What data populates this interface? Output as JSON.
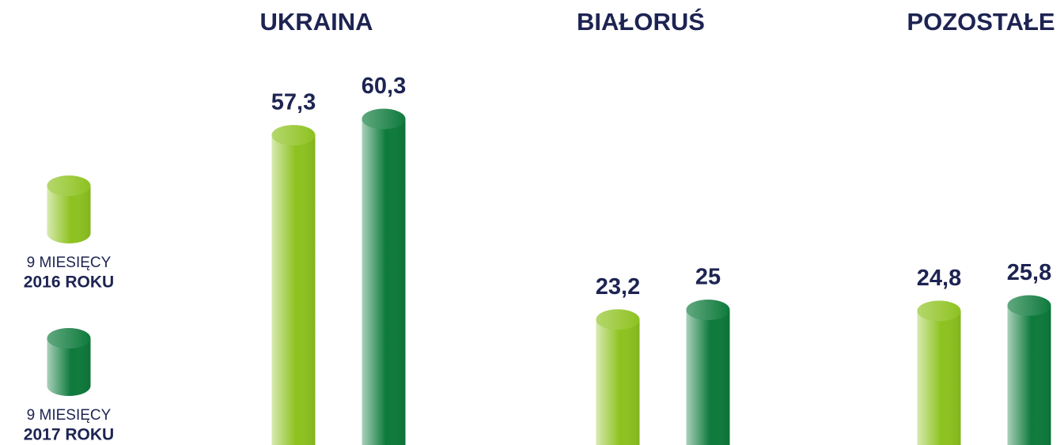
{
  "chart_data": {
    "type": "bar",
    "categories": [
      "UKRAINA",
      "BIAŁORUŚ",
      "POZOSTAŁE"
    ],
    "series": [
      {
        "name": [
          "9 MIESIĘCY",
          "2016 ROKU"
        ],
        "color": "#8dc21f",
        "values": [
          57.3,
          23.2,
          24.8
        ],
        "value_labels": [
          "57,3",
          "23,2",
          "24,8"
        ]
      },
      {
        "name": [
          "9 MIESIĘCY",
          "2017 ROKU"
        ],
        "color": "#0d7a3b",
        "values": [
          60.3,
          25,
          25.8
        ],
        "value_labels": [
          "60,3",
          "25",
          "25,8"
        ]
      }
    ]
  }
}
